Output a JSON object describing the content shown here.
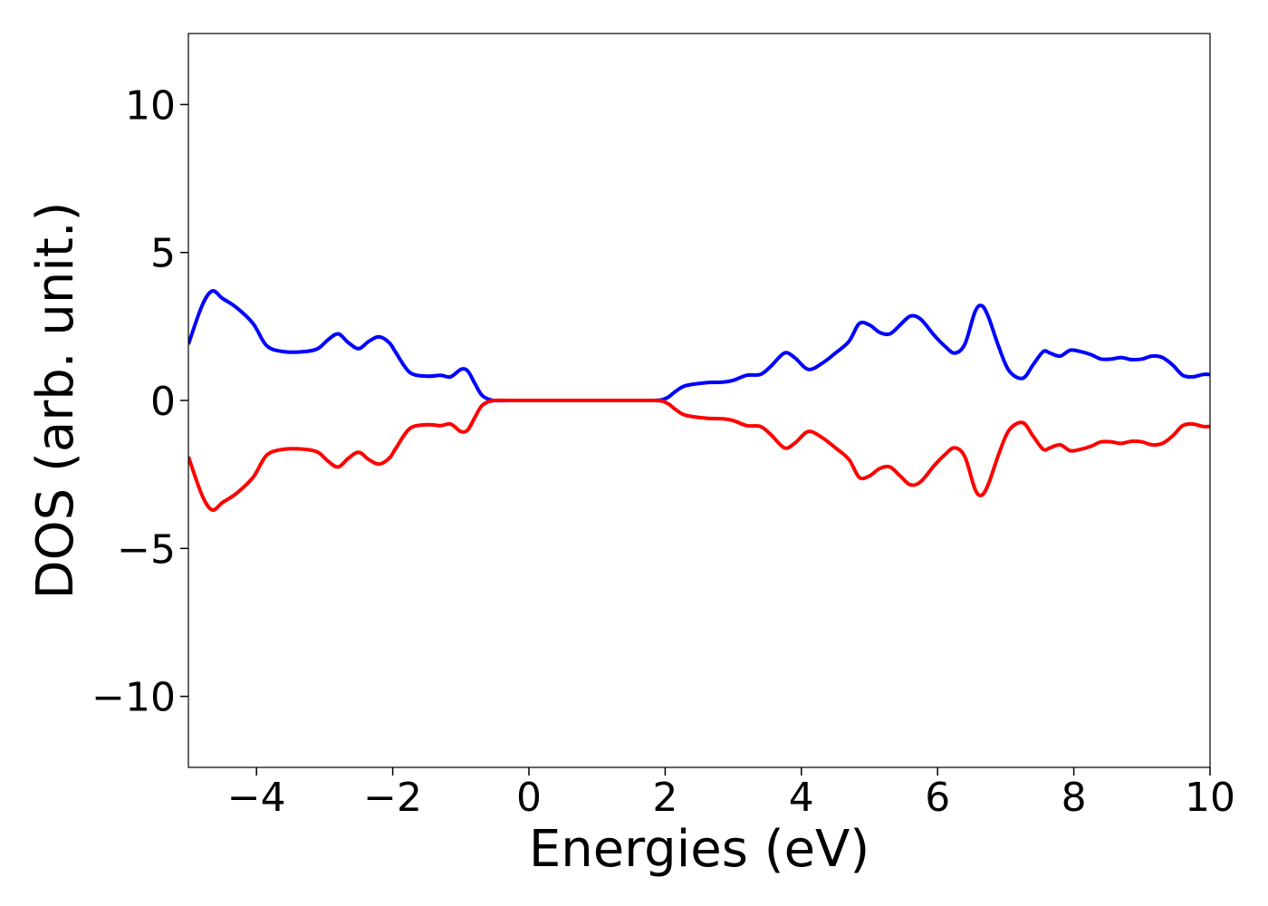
{
  "chart_data": {
    "type": "line",
    "title": "",
    "xlabel": "Energies (eV)",
    "ylabel": "DOS (arb. unit.)",
    "xlim": [
      -5,
      10
    ],
    "ylim": [
      -12.4,
      12.4
    ],
    "xticks": [
      -4,
      -2,
      0,
      2,
      4,
      6,
      8,
      10
    ],
    "yticks": [
      -10,
      -5,
      0,
      5,
      10
    ],
    "xtick_labels": [
      "−4",
      "−2",
      "0",
      "2",
      "4",
      "6",
      "8",
      "10"
    ],
    "ytick_labels": [
      "−10",
      "−5",
      "0",
      "5",
      "10"
    ],
    "grid": false,
    "legend": "none",
    "series": [
      {
        "color": "#0000ff",
        "x": [
          -5.0,
          -4.8,
          -4.65,
          -4.5,
          -4.3,
          -4.05,
          -3.85,
          -3.6,
          -3.3,
          -3.1,
          -2.95,
          -2.8,
          -2.65,
          -2.5,
          -2.35,
          -2.2,
          -2.05,
          -1.95,
          -1.75,
          -1.5,
          -1.3,
          -1.15,
          -1.0,
          -0.9,
          -0.8,
          -0.7,
          -0.6,
          -0.5,
          -0.3,
          0.0,
          0.5,
          1.0,
          1.5,
          1.8,
          1.95,
          2.05,
          2.15,
          2.3,
          2.6,
          2.85,
          3.0,
          3.2,
          3.4,
          3.55,
          3.75,
          3.9,
          4.1,
          4.3,
          4.5,
          4.7,
          4.85,
          5.0,
          5.15,
          5.3,
          5.45,
          5.6,
          5.75,
          5.95,
          6.1,
          6.25,
          6.4,
          6.55,
          6.65,
          6.75,
          6.9,
          7.05,
          7.25,
          7.4,
          7.55,
          7.65,
          7.8,
          7.95,
          8.1,
          8.25,
          8.4,
          8.55,
          8.7,
          8.85,
          9.0,
          9.15,
          9.3,
          9.45,
          9.6,
          9.75,
          9.9,
          10.0
        ],
        "y": [
          1.9,
          3.2,
          3.7,
          3.45,
          3.15,
          2.6,
          1.85,
          1.65,
          1.65,
          1.75,
          2.05,
          2.25,
          1.95,
          1.75,
          2.0,
          2.15,
          1.95,
          1.6,
          0.95,
          0.82,
          0.85,
          0.8,
          1.05,
          1.0,
          0.6,
          0.2,
          0.05,
          0.0,
          0.0,
          0.0,
          0.0,
          0.0,
          0.0,
          0.0,
          0.02,
          0.12,
          0.3,
          0.5,
          0.6,
          0.62,
          0.68,
          0.85,
          0.88,
          1.15,
          1.6,
          1.45,
          1.05,
          1.25,
          1.6,
          2.0,
          2.6,
          2.55,
          2.3,
          2.25,
          2.55,
          2.85,
          2.75,
          2.2,
          1.85,
          1.6,
          1.9,
          3.0,
          3.2,
          2.8,
          1.8,
          1.0,
          0.75,
          1.2,
          1.65,
          1.6,
          1.5,
          1.7,
          1.65,
          1.55,
          1.4,
          1.4,
          1.45,
          1.38,
          1.4,
          1.5,
          1.45,
          1.2,
          0.85,
          0.8,
          0.88,
          0.88
        ]
      },
      {
        "color": "#ff0000",
        "x": [
          -5.0,
          -4.8,
          -4.65,
          -4.5,
          -4.3,
          -4.05,
          -3.85,
          -3.6,
          -3.3,
          -3.1,
          -2.95,
          -2.8,
          -2.65,
          -2.5,
          -2.35,
          -2.2,
          -2.05,
          -1.95,
          -1.75,
          -1.5,
          -1.3,
          -1.15,
          -1.0,
          -0.9,
          -0.8,
          -0.7,
          -0.6,
          -0.5,
          -0.3,
          0.0,
          0.5,
          1.0,
          1.5,
          1.8,
          1.95,
          2.05,
          2.15,
          2.3,
          2.6,
          2.85,
          3.0,
          3.2,
          3.4,
          3.55,
          3.75,
          3.9,
          4.1,
          4.3,
          4.5,
          4.7,
          4.85,
          5.0,
          5.15,
          5.3,
          5.45,
          5.6,
          5.75,
          5.95,
          6.1,
          6.25,
          6.4,
          6.55,
          6.65,
          6.75,
          6.9,
          7.05,
          7.25,
          7.4,
          7.55,
          7.65,
          7.8,
          7.95,
          8.1,
          8.25,
          8.4,
          8.55,
          8.7,
          8.85,
          9.0,
          9.15,
          9.3,
          9.45,
          9.6,
          9.75,
          9.9,
          10.0
        ],
        "y": [
          -1.9,
          -3.2,
          -3.7,
          -3.45,
          -3.15,
          -2.6,
          -1.85,
          -1.65,
          -1.65,
          -1.75,
          -2.05,
          -2.25,
          -1.95,
          -1.75,
          -2.0,
          -2.15,
          -1.95,
          -1.6,
          -0.95,
          -0.82,
          -0.85,
          -0.8,
          -1.05,
          -1.0,
          -0.6,
          -0.2,
          -0.05,
          0.0,
          0.0,
          0.0,
          0.0,
          0.0,
          0.0,
          0.0,
          -0.02,
          -0.12,
          -0.3,
          -0.5,
          -0.6,
          -0.62,
          -0.68,
          -0.85,
          -0.88,
          -1.15,
          -1.6,
          -1.45,
          -1.05,
          -1.25,
          -1.6,
          -2.0,
          -2.6,
          -2.55,
          -2.3,
          -2.25,
          -2.55,
          -2.85,
          -2.75,
          -2.2,
          -1.85,
          -1.6,
          -1.9,
          -3.0,
          -3.2,
          -2.8,
          -1.8,
          -1.0,
          -0.75,
          -1.2,
          -1.65,
          -1.6,
          -1.5,
          -1.7,
          -1.65,
          -1.55,
          -1.4,
          -1.4,
          -1.45,
          -1.38,
          -1.4,
          -1.5,
          -1.45,
          -1.2,
          -0.85,
          -0.8,
          -0.88,
          -0.88
        ]
      }
    ]
  }
}
